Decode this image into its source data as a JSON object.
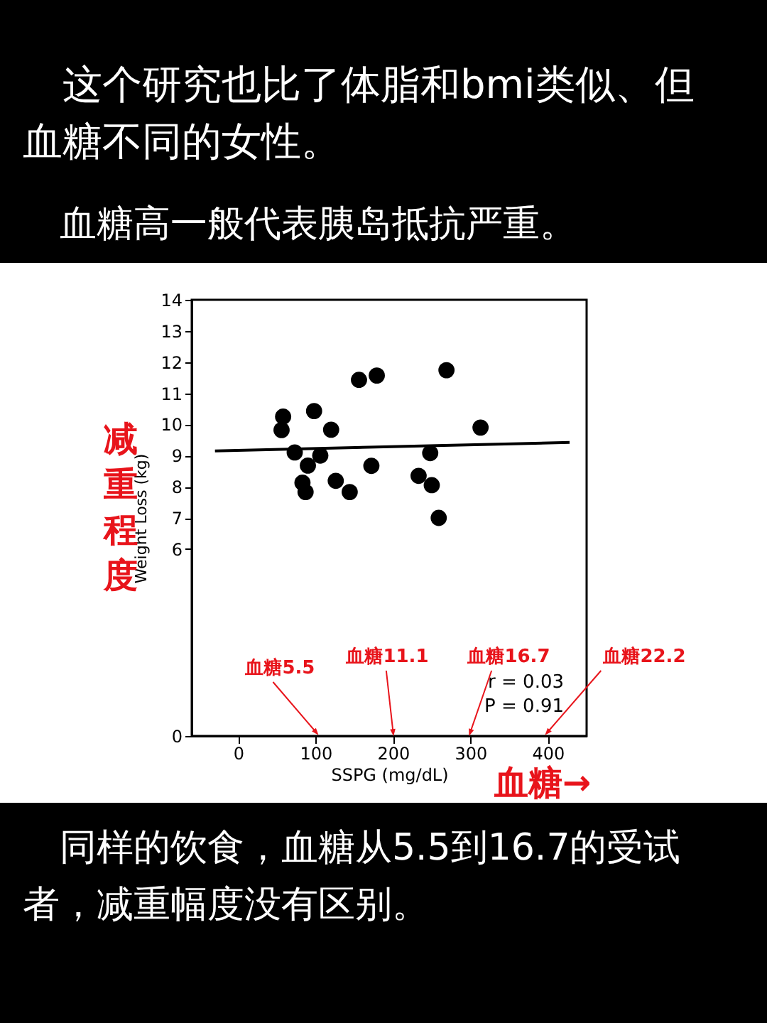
{
  "chart_data": {
    "type": "scatter",
    "title": "这个研究也比了体脂和bmi类似、但血糖不同的女性。",
    "subtitle": "血糖高一般代表胰岛抵抗严重。",
    "xlabel": "SSPG (mg/dL)",
    "ylabel": "Weight Loss (kg)",
    "xlim": [
      -60,
      450
    ],
    "xticks": [
      0,
      100,
      200,
      300,
      400
    ],
    "ylim": [
      0,
      14
    ],
    "yticks": [
      0,
      6,
      7,
      8,
      9,
      10,
      11,
      12,
      13,
      14
    ],
    "grid": false,
    "series": [
      {
        "color": "#000000",
        "marker": "circle",
        "x": [
          58,
          56,
          98,
          120,
          156,
          179,
          269,
          313,
          73,
          106,
          90,
          83,
          87,
          126,
          144,
          172,
          248,
          233,
          250,
          259
        ],
        "values": [
          10.25,
          9.82,
          10.43,
          9.83,
          11.43,
          11.57,
          11.74,
          9.9,
          9.1,
          9.0,
          8.68,
          8.13,
          7.83,
          8.19,
          7.83,
          8.67,
          9.08,
          8.35,
          8.05,
          7.0
        ]
      },
      {
        "type": "line",
        "color": "#000000",
        "marker": "none",
        "x": [
          -30,
          428
        ],
        "values": [
          9.15,
          9.42
        ]
      }
    ],
    "annotations": [
      "减重程度",
      "血糖→",
      "r = 0.03",
      "P = 0.91",
      "血糖5.5",
      "血糖11.1",
      "血糖16.7",
      "血糖22.2",
      "同样的饮食，血糖从5.5到16.7的受试者，减重幅度没有区别。"
    ]
  }
}
